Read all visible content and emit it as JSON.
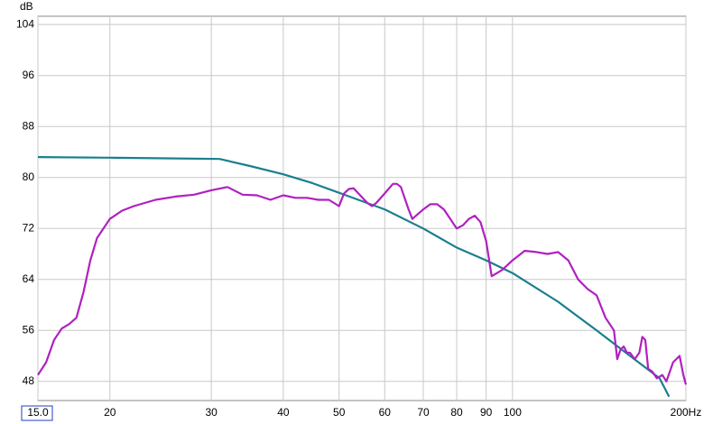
{
  "chart_data": {
    "type": "line",
    "y_label": "dB",
    "xlog": true,
    "grid": true,
    "xlim": [
      15,
      200
    ],
    "ylim": [
      45,
      105.3
    ],
    "yticks": [
      48,
      56,
      64,
      72,
      80,
      88,
      96,
      104
    ],
    "xticks": [
      {
        "value": 15,
        "label": "15.0"
      },
      20,
      30,
      40,
      50,
      60,
      70,
      80,
      90,
      100,
      {
        "value": 200,
        "label": "200Hz"
      }
    ],
    "series": [
      {
        "color": "#1a7f8e",
        "x": [
          15,
          20,
          25,
          31,
          35,
          40,
          45,
          50,
          60,
          70,
          80,
          90,
          100,
          120,
          140,
          160,
          180,
          187
        ],
        "values": [
          83.2,
          83.1,
          83,
          82.9,
          81.8,
          80.5,
          79.1,
          77.6,
          75,
          72,
          69,
          67,
          65,
          60.5,
          56,
          52,
          48.5,
          45.6
        ]
      },
      {
        "color": "#b020c0",
        "x": [
          15,
          15.5,
          16,
          16.5,
          17,
          17.5,
          18,
          18.5,
          19,
          20,
          21,
          22,
          24,
          26,
          28,
          30,
          32,
          34,
          36,
          38,
          40,
          42,
          44,
          46,
          48,
          50,
          51,
          52,
          53,
          54,
          56,
          57,
          58,
          60,
          62,
          63,
          64,
          66,
          67,
          68,
          70,
          72,
          74,
          76,
          78,
          80,
          82,
          84,
          86,
          88,
          90,
          92,
          94,
          96,
          100,
          105,
          110,
          115,
          120,
          125,
          130,
          135,
          140,
          145,
          150,
          152,
          154,
          156,
          158,
          160,
          163,
          166,
          168,
          170,
          172,
          175,
          178,
          182,
          185,
          190,
          195,
          198,
          200
        ],
        "values": [
          49,
          51,
          54.5,
          56.3,
          57,
          58,
          62,
          67,
          70.5,
          73.5,
          74.8,
          75.5,
          76.5,
          77,
          77.3,
          78,
          78.5,
          77.3,
          77.2,
          76.5,
          77.2,
          76.8,
          76.8,
          76.5,
          76.5,
          75.5,
          77.5,
          78.2,
          78.3,
          77.5,
          76,
          75.5,
          76,
          77.5,
          79,
          79,
          78.5,
          75,
          73.5,
          74,
          75,
          75.8,
          75.8,
          75,
          73.5,
          72,
          72.5,
          73.5,
          74,
          73,
          70,
          64.5,
          65,
          65.5,
          67,
          68.5,
          68.3,
          68,
          68.3,
          67,
          64,
          62.5,
          61.5,
          58,
          56,
          51.5,
          53,
          53.5,
          52.5,
          52.5,
          51.5,
          52.5,
          55,
          54.5,
          50,
          49.5,
          48.5,
          49,
          48,
          51,
          52,
          49,
          47.5
        ]
      }
    ]
  }
}
